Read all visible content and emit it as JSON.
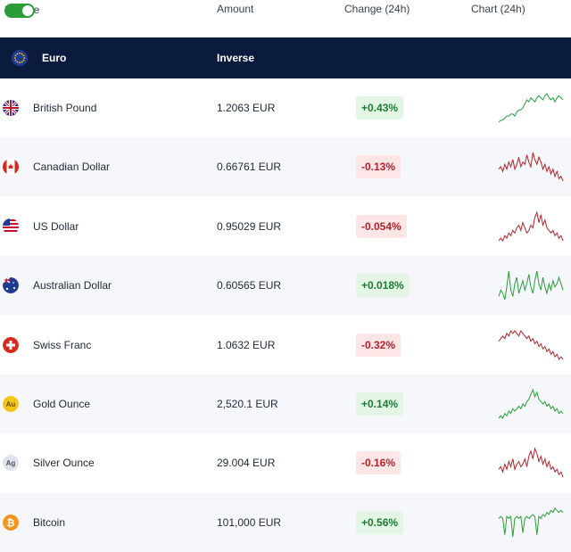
{
  "header": {
    "inverse_label": "Inverse",
    "inverse_on": true,
    "columns": [
      "Amount",
      "Change (24h)",
      "Chart (24h)"
    ]
  },
  "base": {
    "name": "Euro",
    "action_label": "Inverse",
    "icon": "eu-flag-icon"
  },
  "colors": {
    "up": "#2a9d3a",
    "down": "#b4232b",
    "header_bg": "#0b1b3d",
    "toggle": "#2a9d3a"
  },
  "rows": [
    {
      "name": "British Pound",
      "amount": "1.2063 EUR",
      "change": "+0.43%",
      "direction": "up",
      "icon": "uk-flag-icon",
      "spark": [
        2,
        3,
        3,
        4,
        5,
        5,
        6,
        6,
        5,
        7,
        8,
        8,
        9,
        11,
        13,
        12,
        14,
        13,
        12,
        14,
        15,
        14,
        13,
        15,
        16,
        14,
        13,
        14,
        12,
        14,
        15,
        14,
        13
      ]
    },
    {
      "name": "Canadian Dollar",
      "amount": "0.66761 EUR",
      "change": "-0.13%",
      "direction": "down",
      "icon": "canada-flag-icon",
      "spark": [
        10,
        11,
        9,
        12,
        10,
        13,
        11,
        14,
        10,
        12,
        15,
        11,
        13,
        12,
        16,
        13,
        11,
        17,
        14,
        12,
        15,
        13,
        10,
        12,
        9,
        11,
        8,
        10,
        7,
        9,
        6,
        7,
        5
      ]
    },
    {
      "name": "US Dollar",
      "amount": "0.95029 EUR",
      "change": "-0.054%",
      "direction": "down",
      "icon": "us-flag-icon",
      "spark": [
        6,
        7,
        6,
        8,
        7,
        9,
        8,
        10,
        9,
        11,
        12,
        10,
        13,
        11,
        9,
        10,
        12,
        11,
        15,
        17,
        13,
        16,
        12,
        14,
        11,
        10,
        9,
        10,
        8,
        9,
        7,
        8,
        6
      ]
    },
    {
      "name": "Australian Dollar",
      "amount": "0.60565 EUR",
      "change": "+0.018%",
      "direction": "up",
      "icon": "australia-flag-icon",
      "spark": [
        8,
        10,
        9,
        7,
        11,
        16,
        10,
        8,
        12,
        14,
        9,
        11,
        13,
        10,
        12,
        15,
        11,
        9,
        13,
        16,
        12,
        10,
        14,
        11,
        9,
        12,
        10,
        13,
        11,
        12,
        14,
        12,
        10
      ]
    },
    {
      "name": "Swiss Franc",
      "amount": "1.0632 EUR",
      "change": "-0.32%",
      "direction": "down",
      "icon": "swiss-flag-icon",
      "spark": [
        12,
        13,
        14,
        13,
        15,
        14,
        16,
        15,
        16,
        15,
        14,
        16,
        15,
        14,
        13,
        14,
        12,
        13,
        11,
        12,
        10,
        11,
        9,
        10,
        8,
        9,
        7,
        8,
        6,
        7,
        5,
        6,
        5
      ]
    },
    {
      "name": "Gold Ounce",
      "amount": "2,520.1 EUR",
      "change": "+0.14%",
      "direction": "up",
      "icon": "gold-ounce-icon",
      "spark": [
        5,
        6,
        5,
        7,
        6,
        8,
        7,
        9,
        8,
        9,
        10,
        9,
        11,
        10,
        12,
        13,
        15,
        17,
        14,
        16,
        13,
        12,
        11,
        12,
        10,
        11,
        9,
        10,
        8,
        9,
        7,
        8,
        7
      ]
    },
    {
      "name": "Silver Ounce",
      "amount": "29.004 EUR",
      "change": "-0.16%",
      "direction": "down",
      "icon": "silver-ounce-icon",
      "spark": [
        8,
        9,
        7,
        10,
        8,
        11,
        9,
        12,
        8,
        10,
        11,
        9,
        10,
        12,
        9,
        13,
        15,
        12,
        16,
        14,
        11,
        13,
        10,
        12,
        9,
        11,
        8,
        9,
        7,
        8,
        6,
        7,
        5
      ]
    },
    {
      "name": "Bitcoin",
      "amount": "101,000 EUR",
      "change": "+0.56%",
      "direction": "up",
      "icon": "bitcoin-icon",
      "spark": [
        12,
        13,
        12,
        4,
        13,
        12,
        13,
        3,
        12,
        13,
        12,
        13,
        5,
        12,
        13,
        12,
        13,
        14,
        13,
        4,
        13,
        12,
        14,
        13,
        15,
        14,
        16,
        15,
        17,
        16,
        15,
        16,
        15
      ]
    }
  ]
}
